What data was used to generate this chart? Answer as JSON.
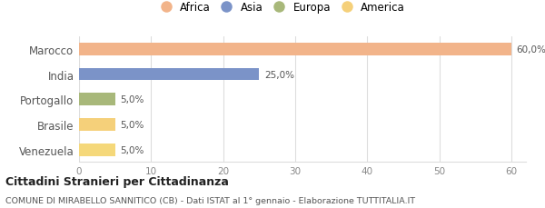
{
  "categories": [
    "Marocco",
    "India",
    "Portogallo",
    "Brasile",
    "Venezuela"
  ],
  "values": [
    60.0,
    25.0,
    5.0,
    5.0,
    5.0
  ],
  "bar_colors": [
    "#F2B48A",
    "#7B93C8",
    "#A8B87A",
    "#F5D07A",
    "#F5D87A"
  ],
  "legend_labels": [
    "Africa",
    "Asia",
    "Europa",
    "America"
  ],
  "legend_colors": [
    "#F2B48A",
    "#7B93C8",
    "#A8B87A",
    "#F5D07A"
  ],
  "pct_labels": [
    "60,0%",
    "25,0%",
    "5,0%",
    "5,0%",
    "5,0%"
  ],
  "xlim": [
    0,
    62
  ],
  "xticks": [
    0,
    10,
    20,
    30,
    40,
    50,
    60
  ],
  "title_bold": "Cittadini Stranieri per Cittadinanza",
  "subtitle": "COMUNE DI MIRABELLO SANNITICO (CB) - Dati ISTAT al 1° gennaio - Elaborazione TUTTITALIA.IT",
  "background_color": "#ffffff",
  "bar_height": 0.5
}
